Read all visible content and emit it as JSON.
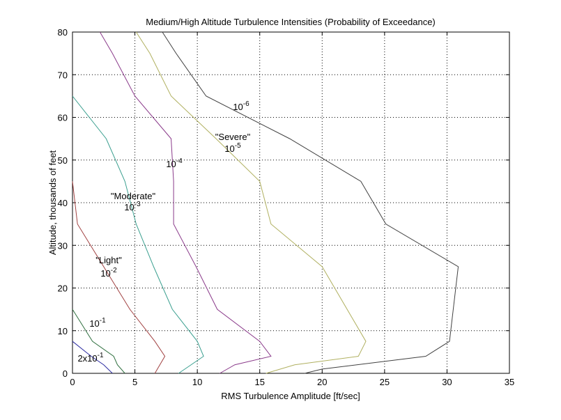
{
  "chart_data": {
    "type": "line",
    "title": "Medium/High Altitude Turbulence Intensities (Probability of Exceedance)",
    "xlabel": "RMS Turbulence Amplitude [ft/sec]",
    "ylabel": "Altitude, thousands of feet",
    "xlim": [
      0,
      35
    ],
    "ylim": [
      0,
      80
    ],
    "xticks": [
      "0",
      "5",
      "10",
      "15",
      "20",
      "25",
      "30",
      "35"
    ],
    "yticks": [
      "0",
      "10",
      "20",
      "30",
      "40",
      "50",
      "60",
      "70",
      "80"
    ],
    "grid": true,
    "series": [
      {
        "color": "#2a2aa0",
        "points": [
          [
            0,
            7.5
          ],
          [
            1.5,
            4
          ],
          [
            2.5,
            2
          ],
          [
            3.2,
            0
          ]
        ]
      },
      {
        "color": "#2f6f3f",
        "points": [
          [
            0,
            15
          ],
          [
            1.6,
            7.5
          ],
          [
            3.3,
            4
          ],
          [
            3.6,
            2
          ],
          [
            4.2,
            0
          ]
        ]
      },
      {
        "color": "#a04040",
        "points": [
          [
            0,
            45
          ],
          [
            0.4,
            35
          ],
          [
            2.5,
            25
          ],
          [
            4.6,
            15
          ],
          [
            6.6,
            7.5
          ],
          [
            7.4,
            4
          ],
          [
            6.6,
            0
          ]
        ]
      },
      {
        "color": "#3a9f8f",
        "points": [
          [
            0,
            65
          ],
          [
            2.7,
            55
          ],
          [
            4.2,
            45
          ],
          [
            5.1,
            35
          ],
          [
            6.5,
            25
          ],
          [
            8,
            15
          ],
          [
            10,
            7.5
          ],
          [
            10.5,
            4
          ],
          [
            9.5,
            2
          ],
          [
            8.5,
            0
          ]
        ]
      },
      {
        "color": "#8a3a8a",
        "points": [
          [
            2.2,
            80
          ],
          [
            3.2,
            75
          ],
          [
            5,
            65
          ],
          [
            7.9,
            55
          ],
          [
            8.1,
            45
          ],
          [
            8.1,
            35
          ],
          [
            9.9,
            25
          ],
          [
            11.6,
            15
          ],
          [
            15,
            7.5
          ],
          [
            15.9,
            4
          ],
          [
            13,
            2
          ],
          [
            11.8,
            0
          ]
        ]
      },
      {
        "color": "#b0b060",
        "points": [
          [
            5.1,
            80
          ],
          [
            6.2,
            75
          ],
          [
            7.9,
            65
          ],
          [
            11.5,
            55
          ],
          [
            15,
            45
          ],
          [
            15.9,
            35
          ],
          [
            20,
            25
          ],
          [
            23.5,
            7.5
          ],
          [
            22.9,
            4
          ],
          [
            17.8,
            2
          ],
          [
            15.5,
            0
          ]
        ]
      },
      {
        "color": "#404040",
        "points": [
          [
            7.2,
            80
          ],
          [
            8.3,
            75
          ],
          [
            10.7,
            65
          ],
          [
            17.4,
            55
          ],
          [
            23.1,
            45
          ],
          [
            25.1,
            35
          ],
          [
            30.9,
            25
          ],
          [
            30.7,
            20
          ],
          [
            30.5,
            15
          ],
          [
            30.2,
            7.5
          ],
          [
            28.3,
            4
          ],
          [
            20,
            1
          ],
          [
            18.6,
            0
          ]
        ]
      }
    ],
    "annotations": [
      {
        "text": "\"Severe\""
      },
      {
        "text": "\"Moderate\""
      },
      {
        "text": "\"Light\""
      }
    ],
    "contour_labels": [
      {
        "base": "10",
        "exp": "-6"
      },
      {
        "base": "10",
        "exp": "-5"
      },
      {
        "base": "10",
        "exp": "-4"
      },
      {
        "base": "10",
        "exp": "-3"
      },
      {
        "base": "10",
        "exp": "-2"
      },
      {
        "base": "10",
        "exp": "-1"
      },
      {
        "base": "2x10",
        "exp": "-1"
      }
    ]
  }
}
